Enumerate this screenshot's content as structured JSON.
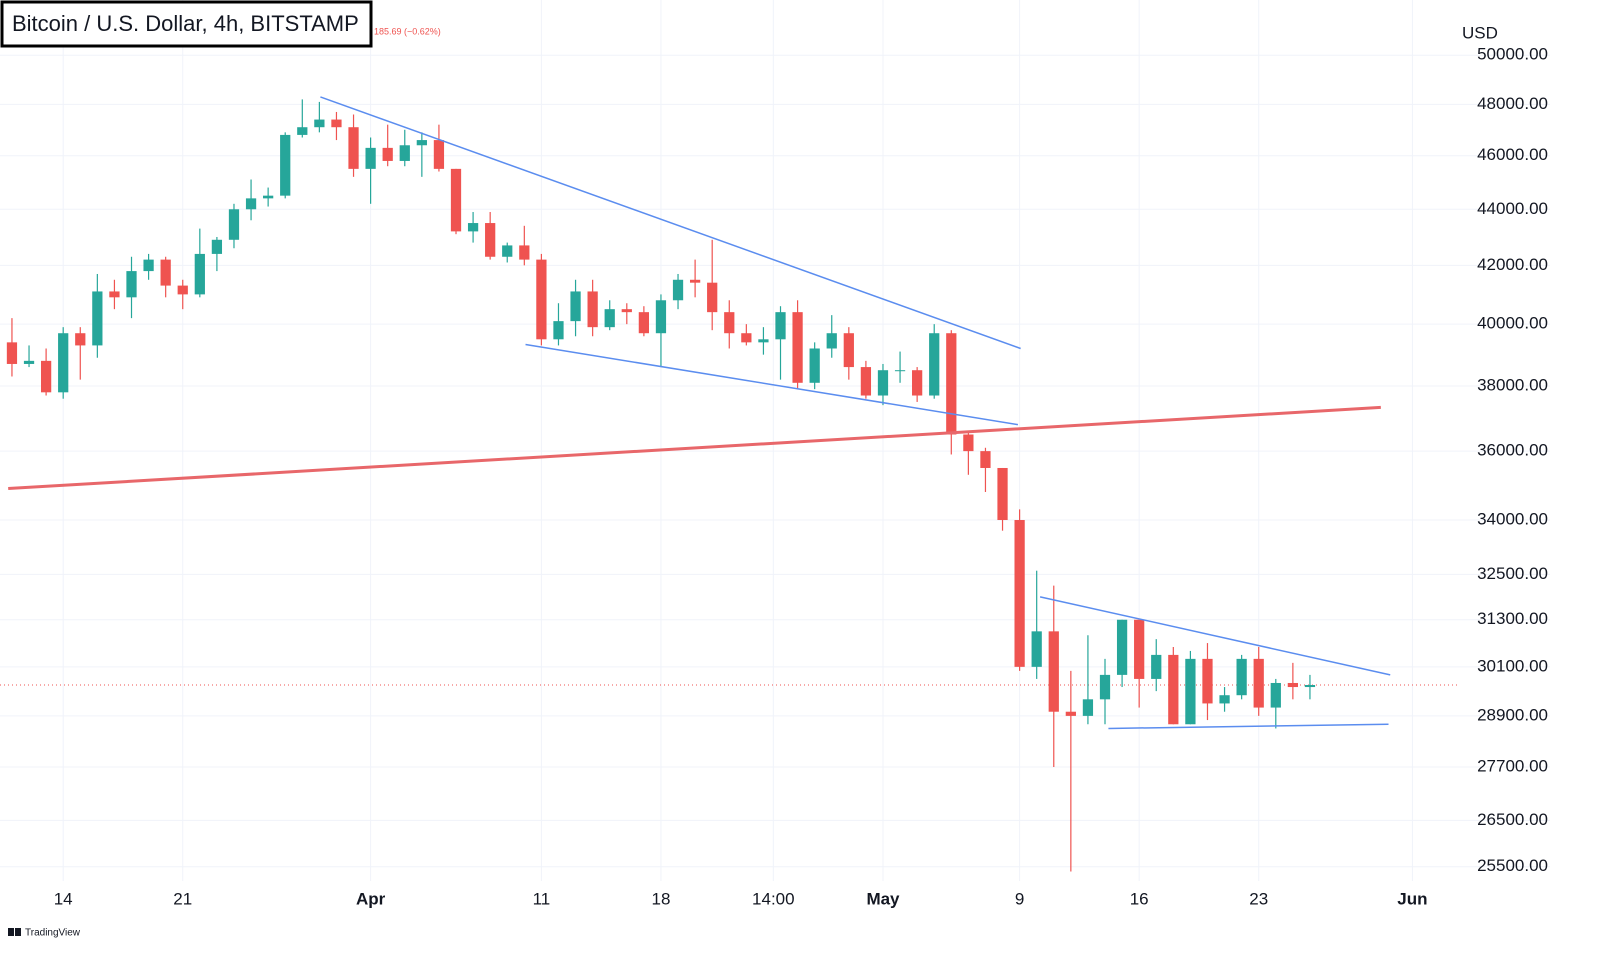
{
  "chart_data": {
    "type": "candlestick",
    "title": "Bitcoin / U.S. Dollar, 4h, BITSTAMP",
    "price_change_label": "185.69 (−0.62%)",
    "y_axis_label": "USD",
    "branding": "TradingView",
    "log_scale": true,
    "grid": true,
    "up_color": "#26a69a",
    "down_color": "#ef5350",
    "x": [
      70,
      71,
      72,
      73,
      74,
      75,
      76,
      77,
      78,
      79,
      80,
      81,
      82,
      83,
      84,
      85,
      86,
      87,
      88,
      89,
      90,
      91,
      92,
      93,
      94,
      95,
      96,
      97,
      98,
      99,
      100,
      101,
      102,
      103,
      104,
      105,
      106,
      107,
      108,
      109,
      110,
      111,
      112,
      113,
      114,
      115,
      116,
      117,
      118,
      119,
      120,
      121,
      122,
      123,
      124,
      125,
      126,
      127,
      128,
      129,
      130,
      131,
      132,
      133,
      134,
      135,
      136,
      137,
      138,
      139,
      140,
      141,
      142,
      143,
      144,
      145,
      146
    ],
    "open": [
      39400,
      38700,
      38800,
      37800,
      39700,
      39300,
      41100,
      40900,
      41800,
      42200,
      41300,
      41000,
      42400,
      42900,
      44000,
      44400,
      44500,
      46800,
      47100,
      47400,
      47100,
      45500,
      46300,
      45800,
      46400,
      46600,
      45500,
      43200,
      43500,
      42300,
      42700,
      42200,
      39500,
      40100,
      41100,
      39900,
      40500,
      40400,
      39700,
      40800,
      41500,
      41400,
      40400,
      39700,
      39400,
      39500,
      40400,
      38100,
      39200,
      39700,
      38600,
      37700,
      38500,
      38500,
      37700,
      39700,
      36500,
      36000,
      35500,
      34000,
      30100,
      31000,
      29000,
      28900,
      29300,
      29900,
      31300,
      29800,
      30400,
      28700,
      30300,
      29200,
      29400,
      30300,
      29100,
      29700,
      29600
    ],
    "high": [
      40200,
      39300,
      39200,
      39900,
      39900,
      41700,
      41500,
      42300,
      42400,
      42300,
      41500,
      43300,
      43000,
      44200,
      45100,
      44800,
      46900,
      48200,
      48100,
      47700,
      47600,
      46700,
      47200,
      47000,
      46900,
      47200,
      45500,
      43900,
      43900,
      42800,
      43400,
      42400,
      40700,
      41500,
      41500,
      40800,
      40700,
      40600,
      41000,
      41700,
      42200,
      42900,
      40800,
      40000,
      39900,
      40600,
      40800,
      39400,
      40300,
      39900,
      38800,
      38700,
      39100,
      38600,
      40000,
      39800,
      36600,
      36100,
      35500,
      34300,
      32600,
      32200,
      30000,
      30900,
      30300,
      31300,
      31300,
      30800,
      30600,
      30500,
      30700,
      29600,
      30400,
      30600,
      29800,
      30200,
      29900
    ],
    "low": [
      38300,
      38600,
      37700,
      37600,
      38200,
      38900,
      40500,
      40200,
      41500,
      40900,
      40500,
      40900,
      41800,
      42600,
      43600,
      44100,
      44400,
      46700,
      46900,
      46600,
      45200,
      44200,
      45600,
      45600,
      45200,
      45400,
      43100,
      42800,
      42200,
      42100,
      42000,
      39300,
      39300,
      39600,
      39600,
      39800,
      40000,
      39600,
      38600,
      40500,
      40900,
      39800,
      39200,
      39300,
      39000,
      38200,
      37900,
      37900,
      38900,
      38200,
      37600,
      37400,
      38100,
      37500,
      37600,
      35900,
      35300,
      34800,
      33700,
      30000,
      29800,
      27700,
      25400,
      28700,
      28700,
      29600,
      29100,
      29500,
      28700,
      28700,
      28800,
      29000,
      29300,
      28900,
      28600,
      29300,
      29300
    ],
    "close": [
      38700,
      38800,
      37800,
      39700,
      39300,
      41100,
      40900,
      41800,
      42200,
      41300,
      41000,
      42400,
      42900,
      44000,
      44400,
      44500,
      46800,
      47100,
      47400,
      47100,
      45500,
      46300,
      45800,
      46400,
      46600,
      45500,
      43200,
      43500,
      42300,
      42700,
      42200,
      39500,
      40100,
      41100,
      39900,
      40500,
      40400,
      39700,
      40800,
      41500,
      41400,
      40400,
      39700,
      39400,
      39500,
      40400,
      38100,
      39200,
      39700,
      38600,
      37700,
      38500,
      38500,
      37700,
      39700,
      36500,
      36000,
      35500,
      34000,
      30100,
      31000,
      29000,
      28900,
      29300,
      29900,
      31300,
      29800,
      30400,
      28700,
      30300,
      29200,
      29400,
      30300,
      29100,
      29700,
      29600,
      29650
    ],
    "last_price": 29650,
    "last_price_color": "#ef5350",
    "xlim": [
      69.3,
      154.2
    ],
    "xticks": [
      {
        "value": 73,
        "label": "14"
      },
      {
        "value": 80,
        "label": "21"
      },
      {
        "value": 91,
        "label": "Apr"
      },
      {
        "value": 101,
        "label": "11"
      },
      {
        "value": 108,
        "label": "18"
      },
      {
        "value": 114.58,
        "label": "14:00"
      },
      {
        "value": 121,
        "label": "May"
      },
      {
        "value": 129,
        "label": "9"
      },
      {
        "value": 136,
        "label": "16"
      },
      {
        "value": 143,
        "label": "23"
      },
      {
        "value": 152,
        "label": "Jun"
      }
    ],
    "ylim": [
      25200,
      52300
    ],
    "yticks": [
      {
        "value": 50000,
        "label": "50000.00"
      },
      {
        "value": 48000,
        "label": "48000.00"
      },
      {
        "value": 46000,
        "label": "46000.00"
      },
      {
        "value": 44000,
        "label": "44000.00"
      },
      {
        "value": 42000,
        "label": "42000.00"
      },
      {
        "value": 40000,
        "label": "40000.00"
      },
      {
        "value": 38000,
        "label": "38000.00"
      },
      {
        "value": 36000,
        "label": "36000.00"
      },
      {
        "value": 34000,
        "label": "34000.00"
      },
      {
        "value": 32500,
        "label": "32500.00"
      },
      {
        "value": 31300,
        "label": "31300.00"
      },
      {
        "value": 30100,
        "label": "30100.00"
      },
      {
        "value": 28900,
        "label": "28900.00"
      },
      {
        "value": 27700,
        "label": "27700.00"
      },
      {
        "value": 26500,
        "label": "26500.00"
      },
      {
        "value": 25500,
        "label": "25500.00"
      }
    ],
    "drawings": [
      {
        "x": [
          88.06,
          129.06
        ],
        "y": [
          48300,
          39200
        ],
        "color": "#5b8def"
      },
      {
        "x": [
          100.07,
          128.9
        ],
        "y": [
          39330,
          36800
        ],
        "color": "#5b8def"
      },
      {
        "x": [
          69.78,
          150.15
        ],
        "y": [
          34900,
          37330
        ],
        "color": "#e8676a"
      },
      {
        "x": [
          130.2,
          150.7
        ],
        "y": [
          31900,
          29900
        ],
        "color": "#5b8def"
      },
      {
        "x": [
          134.2,
          150.6
        ],
        "y": [
          28600,
          28700
        ],
        "color": "#5b8def"
      }
    ]
  }
}
